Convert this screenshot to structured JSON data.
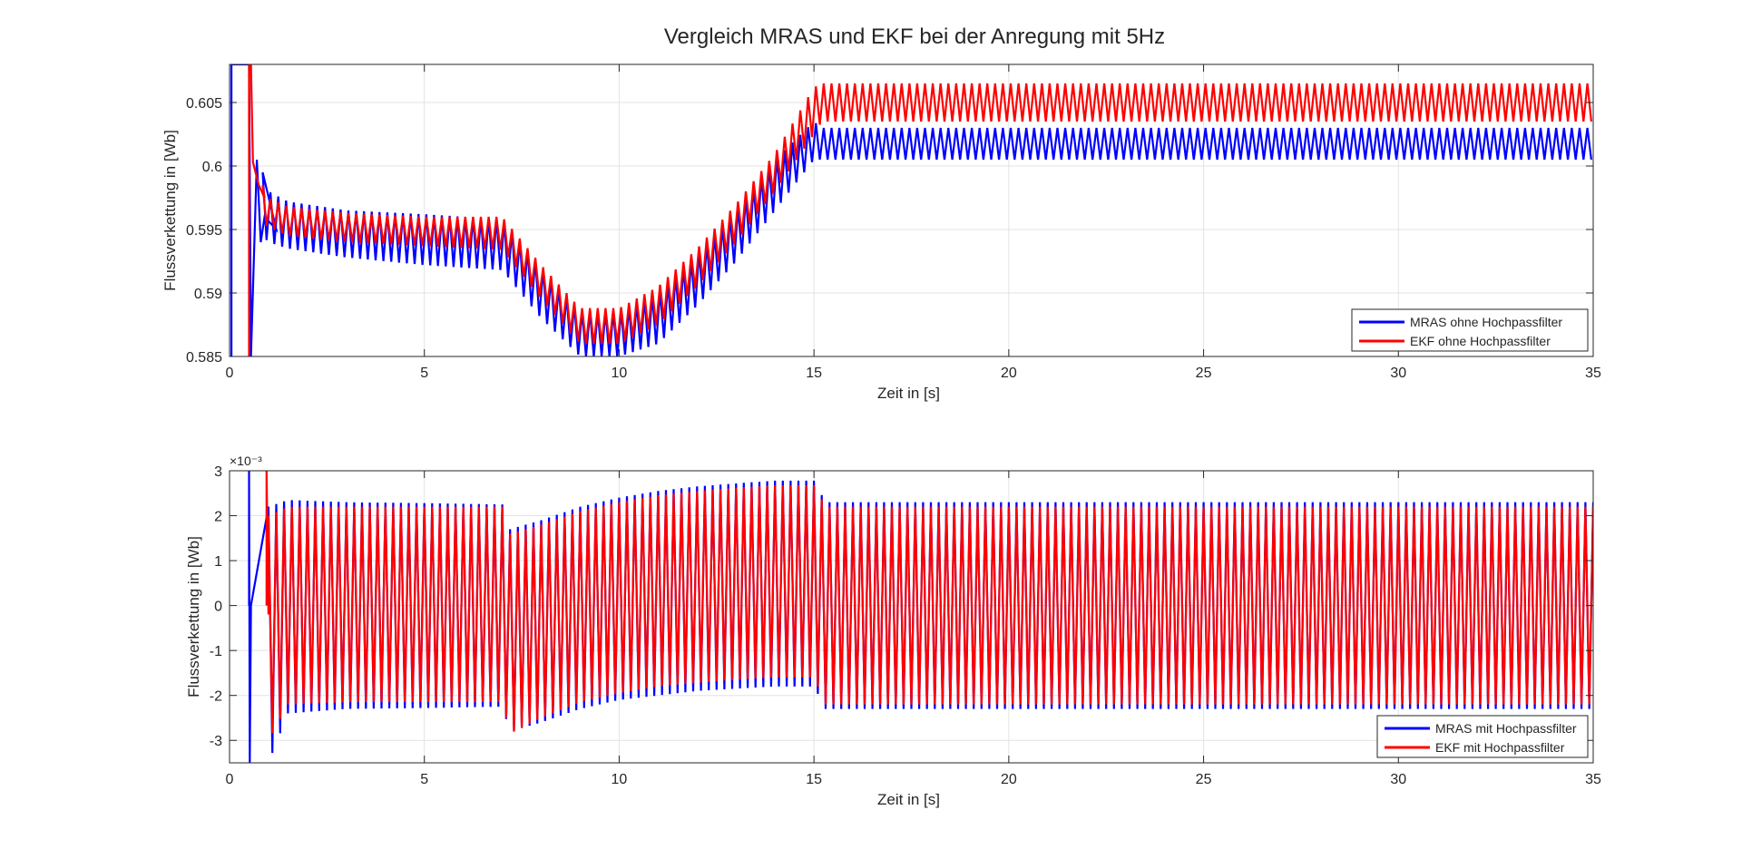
{
  "figure_title": "Vergleich MRAS und EKF bei der Anregung mit 5Hz",
  "colors": {
    "mras": "#0000ff",
    "ekf": "#ff0000",
    "grid": "#e3e3e3",
    "axis": "#262626"
  },
  "chart_data": [
    {
      "type": "line",
      "title": "Vergleich MRAS und EKF bei der Anregung mit 5Hz",
      "xlabel": "Zeit in [s]",
      "ylabel": "Flussverkettung in [Wb]",
      "xlim": [
        0,
        35
      ],
      "ylim": [
        0.585,
        0.608
      ],
      "xticks": [
        0,
        5,
        10,
        15,
        20,
        25,
        30,
        35
      ],
      "xtick_labels": [
        "0",
        "5",
        "10",
        "15",
        "20",
        "25",
        "30",
        "35"
      ],
      "yticks": [
        0.585,
        0.59,
        0.595,
        0.6,
        0.605
      ],
      "ytick_labels": [
        "0.585",
        "0.59",
        "0.595",
        "0.6",
        "0.605"
      ],
      "grid": true,
      "legend_position": "bottom-right",
      "oscillation_hz": 5,
      "series": [
        {
          "name": "MRAS ohne Hochpassfilter",
          "color": "#0000ff",
          "start": 0.05,
          "transient": [
            [
              0.05,
              0.585
            ],
            [
              0.05,
              0.608
            ],
            [
              0.5,
              0.608
            ],
            [
              0.55,
              0.585
            ],
            [
              0.7,
              0.6005
            ],
            [
              0.8,
              0.594
            ],
            [
              0.9,
              0.596
            ],
            [
              1.2,
              0.595
            ]
          ],
          "upper": [
            [
              0.85,
              0.5995
            ],
            [
              1.0,
              0.598
            ],
            [
              1.5,
              0.5972
            ],
            [
              3,
              0.5965
            ],
            [
              5,
              0.5962
            ],
            [
              7,
              0.5958
            ],
            [
              8,
              0.592
            ],
            [
              9,
              0.5885
            ],
            [
              10,
              0.5885
            ],
            [
              11,
              0.59
            ],
            [
              12,
              0.593
            ],
            [
              13,
              0.5965
            ],
            [
              14,
              0.6005
            ],
            [
              15,
              0.6035
            ],
            [
              15.2,
              0.603
            ],
            [
              35,
              0.603
            ]
          ],
          "lower": [
            [
              0.85,
              0.5945
            ],
            [
              1.0,
              0.594
            ],
            [
              1.5,
              0.5935
            ],
            [
              3,
              0.5928
            ],
            [
              5,
              0.5922
            ],
            [
              7,
              0.5918
            ],
            [
              8,
              0.588
            ],
            [
              9,
              0.585
            ],
            [
              10,
              0.585
            ],
            [
              11,
              0.586
            ],
            [
              12,
              0.589
            ],
            [
              13,
              0.5925
            ],
            [
              14,
              0.5965
            ],
            [
              15,
              0.6005
            ],
            [
              15.2,
              0.6005
            ],
            [
              35,
              0.6005
            ]
          ]
        },
        {
          "name": "EKF ohne Hochpassfilter",
          "color": "#ff0000",
          "start": 0.5,
          "transient": [
            [
              0.5,
              0.585
            ],
            [
              0.5,
              0.608
            ],
            [
              0.55,
              0.608
            ],
            [
              0.6,
              0.6003
            ],
            [
              0.75,
              0.5985
            ],
            [
              0.9,
              0.5975
            ]
          ],
          "upper": [
            [
              0.85,
              0.5985
            ],
            [
              1.0,
              0.5975
            ],
            [
              1.5,
              0.5968
            ],
            [
              3,
              0.5963
            ],
            [
              5,
              0.596
            ],
            [
              7,
              0.596
            ],
            [
              8,
              0.5922
            ],
            [
              9,
              0.5888
            ],
            [
              10,
              0.5888
            ],
            [
              11,
              0.5905
            ],
            [
              12,
              0.5935
            ],
            [
              13,
              0.597
            ],
            [
              14,
              0.601
            ],
            [
              15,
              0.6062
            ],
            [
              15.2,
              0.6065
            ],
            [
              35,
              0.6065
            ]
          ],
          "lower": [
            [
              0.85,
              0.5955
            ],
            [
              1.0,
              0.5952
            ],
            [
              1.5,
              0.5945
            ],
            [
              3,
              0.594
            ],
            [
              5,
              0.5937
            ],
            [
              7,
              0.5934
            ],
            [
              8,
              0.5895
            ],
            [
              9,
              0.586
            ],
            [
              10,
              0.586
            ],
            [
              11,
              0.5875
            ],
            [
              12,
              0.5905
            ],
            [
              13,
              0.594
            ],
            [
              14,
              0.598
            ],
            [
              15,
              0.6025
            ],
            [
              15.2,
              0.6035
            ],
            [
              35,
              0.6035
            ]
          ]
        }
      ]
    },
    {
      "type": "line",
      "xlabel": "Zeit in [s]",
      "ylabel": "Flussverkettung in [Wb]",
      "scale_label": "×10⁻³",
      "xlim": [
        0,
        35
      ],
      "ylim": [
        -3.5,
        3
      ],
      "xticks": [
        0,
        5,
        10,
        15,
        20,
        25,
        30,
        35
      ],
      "xtick_labels": [
        "0",
        "5",
        "10",
        "15",
        "20",
        "25",
        "30",
        "35"
      ],
      "yticks": [
        -3,
        -2,
        -1,
        0,
        1,
        2,
        3
      ],
      "ytick_labels": [
        "-3",
        "-2",
        "-1",
        "0",
        "1",
        "2",
        "3"
      ],
      "grid": true,
      "legend_position": "bottom-right",
      "oscillation_hz": 5,
      "series": [
        {
          "name": "MRAS mit Hochpassfilter",
          "color": "#0000ff",
          "start": 0.5,
          "transient": [
            [
              0.5,
              0
            ],
            [
              0.5,
              3
            ],
            [
              0.52,
              -3.5
            ],
            [
              0.55,
              0
            ]
          ],
          "upper": [
            [
              1.0,
              2.2
            ],
            [
              1.5,
              2.35
            ],
            [
              3,
              2.3
            ],
            [
              5,
              2.28
            ],
            [
              7,
              2.25
            ],
            [
              7.2,
              1.7
            ],
            [
              8,
              1.9
            ],
            [
              9,
              2.2
            ],
            [
              10,
              2.4
            ],
            [
              11,
              2.55
            ],
            [
              12,
              2.65
            ],
            [
              13,
              2.72
            ],
            [
              14,
              2.78
            ],
            [
              15,
              2.78
            ],
            [
              15.3,
              2.3
            ],
            [
              35,
              2.3
            ]
          ],
          "lower": [
            [
              1.0,
              -3.5
            ],
            [
              1.5,
              -2.4
            ],
            [
              3,
              -2.3
            ],
            [
              5,
              -2.28
            ],
            [
              7,
              -2.25
            ],
            [
              7.2,
              -2.8
            ],
            [
              8,
              -2.6
            ],
            [
              9,
              -2.3
            ],
            [
              10,
              -2.1
            ],
            [
              11,
              -2.0
            ],
            [
              12,
              -1.9
            ],
            [
              13,
              -1.85
            ],
            [
              14,
              -1.8
            ],
            [
              15,
              -1.8
            ],
            [
              15.3,
              -2.3
            ],
            [
              35,
              -2.3
            ]
          ]
        },
        {
          "name": "EKF mit Hochpassfilter",
          "color": "#ff0000",
          "start": 0.95,
          "transient": [
            [
              0.95,
              0
            ],
            [
              0.95,
              3
            ],
            [
              1.0,
              -0.2
            ]
          ],
          "upper": [
            [
              1.0,
              2.0
            ],
            [
              1.5,
              2.2
            ],
            [
              3,
              2.2
            ],
            [
              5,
              2.2
            ],
            [
              7,
              2.2
            ],
            [
              7.2,
              1.6
            ],
            [
              8,
              1.8
            ],
            [
              9,
              2.1
            ],
            [
              10,
              2.3
            ],
            [
              11,
              2.45
            ],
            [
              12,
              2.55
            ],
            [
              13,
              2.62
            ],
            [
              14,
              2.68
            ],
            [
              15,
              2.68
            ],
            [
              15.3,
              2.2
            ],
            [
              35,
              2.2
            ]
          ],
          "lower": [
            [
              1.0,
              -3.0
            ],
            [
              1.5,
              -2.2
            ],
            [
              3,
              -2.15
            ],
            [
              5,
              -2.15
            ],
            [
              7,
              -2.15
            ],
            [
              7.2,
              -2.85
            ],
            [
              8,
              -2.5
            ],
            [
              9,
              -2.15
            ],
            [
              10,
              -1.95
            ],
            [
              11,
              -1.8
            ],
            [
              12,
              -1.72
            ],
            [
              13,
              -1.65
            ],
            [
              14,
              -1.6
            ],
            [
              15,
              -1.6
            ],
            [
              15.3,
              -2.2
            ],
            [
              35,
              -2.2
            ]
          ]
        }
      ]
    }
  ]
}
